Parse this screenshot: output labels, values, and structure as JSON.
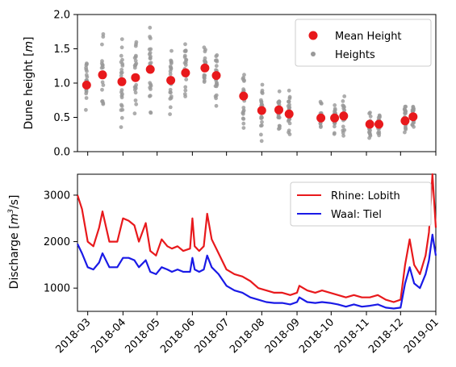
{
  "chart_data": [
    {
      "type": "scatter",
      "ylabel_text": "Dune height [",
      "ylabel_unit": "m",
      "ylabel_end": "]",
      "ylim": [
        0.0,
        2.0
      ],
      "yticks": [
        "0.0",
        "0.5",
        "1.0",
        "1.5",
        "2.0"
      ],
      "xlim": [
        "2018-02-20",
        "2019-01-01"
      ],
      "grid": false,
      "legend_position": "top-right",
      "series": [
        {
          "name": "Mean Height",
          "color": "#e8191c",
          "x": [
            "2018-02-28",
            "2018-03-14",
            "2018-03-31",
            "2018-04-12",
            "2018-04-25",
            "2018-05-13",
            "2018-05-26",
            "2018-06-12",
            "2018-06-22",
            "2018-07-16",
            "2018-08-01",
            "2018-08-16",
            "2018-08-25",
            "2018-09-22",
            "2018-10-04",
            "2018-10-12",
            "2018-11-04",
            "2018-11-12",
            "2018-12-05",
            "2018-12-12"
          ],
          "y": [
            0.97,
            1.12,
            1.02,
            1.08,
            1.2,
            1.04,
            1.15,
            1.22,
            1.11,
            0.81,
            0.6,
            0.61,
            0.55,
            0.49,
            0.49,
            0.52,
            0.4,
            0.4,
            0.45,
            0.51
          ]
        },
        {
          "name": "Heights",
          "color": "#999999",
          "spread": [
            0.35,
            0.4,
            0.45,
            0.45,
            0.4,
            0.4,
            0.35,
            0.3,
            0.3,
            0.3,
            0.3,
            0.25,
            0.25,
            0.2,
            0.2,
            0.2,
            0.2,
            0.2,
            0.2,
            0.2
          ]
        }
      ]
    },
    {
      "type": "line",
      "ylabel_text": "Discharge [",
      "ylabel_unit": "m",
      "ylabel_sup": "3",
      "ylabel_end": "/s]",
      "ylim": [
        500,
        3450
      ],
      "yticks": [
        1000,
        2000,
        3000
      ],
      "xlim": [
        "2018-02-20",
        "2019-01-01"
      ],
      "xticks": [
        "2018-03",
        "2018-04",
        "2018-05",
        "2018-06",
        "2018-07",
        "2018-08",
        "2018-09",
        "2018-10",
        "2018-11",
        "2018-12",
        "2019-01"
      ],
      "grid": false,
      "legend_position": "top-right",
      "series": [
        {
          "name": "Rhine: Lobith",
          "color": "#e8191c",
          "x": [
            "2018-02-20",
            "2018-02-24",
            "2018-03-01",
            "2018-03-06",
            "2018-03-11",
            "2018-03-14",
            "2018-03-20",
            "2018-03-27",
            "2018-04-01",
            "2018-04-06",
            "2018-04-11",
            "2018-04-15",
            "2018-04-21",
            "2018-04-25",
            "2018-04-30",
            "2018-05-05",
            "2018-05-10",
            "2018-05-14",
            "2018-05-19",
            "2018-05-24",
            "2018-05-30",
            "2018-06-01",
            "2018-06-03",
            "2018-06-07",
            "2018-06-11",
            "2018-06-14",
            "2018-06-18",
            "2018-06-24",
            "2018-07-01",
            "2018-07-08",
            "2018-07-15",
            "2018-07-22",
            "2018-07-29",
            "2018-08-05",
            "2018-08-12",
            "2018-08-19",
            "2018-08-26",
            "2018-09-01",
            "2018-09-03",
            "2018-09-10",
            "2018-09-17",
            "2018-09-23",
            "2018-09-30",
            "2018-10-07",
            "2018-10-14",
            "2018-10-21",
            "2018-10-28",
            "2018-11-04",
            "2018-11-11",
            "2018-11-18",
            "2018-11-25",
            "2018-12-01",
            "2018-12-05",
            "2018-12-09",
            "2018-12-13",
            "2018-12-18",
            "2018-12-23",
            "2018-12-26",
            "2018-12-29",
            "2019-01-01"
          ],
          "y": [
            3000,
            2700,
            2000,
            1900,
            2300,
            2650,
            2000,
            2000,
            2500,
            2450,
            2350,
            2000,
            2400,
            1800,
            1700,
            2050,
            1900,
            1850,
            1900,
            1800,
            1850,
            2500,
            1900,
            1800,
            1900,
            2600,
            2050,
            1750,
            1400,
            1300,
            1250,
            1150,
            1000,
            950,
            900,
            900,
            850,
            900,
            1050,
            950,
            900,
            950,
            900,
            850,
            800,
            850,
            800,
            800,
            850,
            750,
            700,
            750,
            1500,
            2050,
            1500,
            1300,
            1700,
            2200,
            3450,
            2300
          ]
        },
        {
          "name": "Waal: Tiel",
          "color": "#1a1ae6",
          "x": [
            "2018-02-20",
            "2018-02-24",
            "2018-03-01",
            "2018-03-06",
            "2018-03-11",
            "2018-03-14",
            "2018-03-20",
            "2018-03-27",
            "2018-04-01",
            "2018-04-06",
            "2018-04-11",
            "2018-04-15",
            "2018-04-21",
            "2018-04-25",
            "2018-04-30",
            "2018-05-05",
            "2018-05-10",
            "2018-05-14",
            "2018-05-19",
            "2018-05-24",
            "2018-05-30",
            "2018-06-01",
            "2018-06-03",
            "2018-06-07",
            "2018-06-11",
            "2018-06-14",
            "2018-06-18",
            "2018-06-24",
            "2018-07-01",
            "2018-07-08",
            "2018-07-15",
            "2018-07-22",
            "2018-07-29",
            "2018-08-05",
            "2018-08-12",
            "2018-08-19",
            "2018-08-26",
            "2018-09-01",
            "2018-09-03",
            "2018-09-10",
            "2018-09-17",
            "2018-09-23",
            "2018-09-30",
            "2018-10-07",
            "2018-10-14",
            "2018-10-21",
            "2018-10-28",
            "2018-11-04",
            "2018-11-11",
            "2018-11-18",
            "2018-11-25",
            "2018-12-01",
            "2018-12-05",
            "2018-12-09",
            "2018-12-13",
            "2018-12-18",
            "2018-12-23",
            "2018-12-26",
            "2018-12-29",
            "2019-01-01"
          ],
          "y": [
            1950,
            1750,
            1450,
            1400,
            1550,
            1750,
            1450,
            1450,
            1650,
            1650,
            1600,
            1450,
            1600,
            1350,
            1300,
            1450,
            1400,
            1350,
            1400,
            1350,
            1350,
            1650,
            1400,
            1350,
            1400,
            1700,
            1450,
            1300,
            1050,
            950,
            900,
            800,
            750,
            700,
            680,
            680,
            650,
            700,
            800,
            700,
            680,
            700,
            680,
            650,
            600,
            650,
            600,
            620,
            650,
            580,
            560,
            580,
            1100,
            1450,
            1100,
            1000,
            1300,
            1600,
            2150,
            1700
          ]
        }
      ]
    }
  ]
}
